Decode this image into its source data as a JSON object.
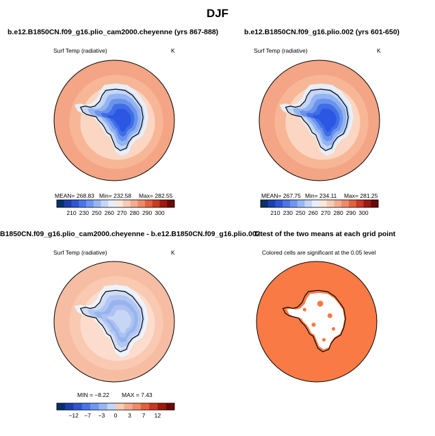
{
  "figure": {
    "title": "DJF"
  },
  "chart_data": [
    {
      "type": "polar-contour-map",
      "title": "b.e12.B1850CN.f09_g16.plio_cam2000.cheyenne (yrs 867-888)",
      "variable": "Surf Temp (radiative)",
      "units": "K",
      "stats": {
        "mean": "MEAN= 268.83",
        "min": "Min= 232.58",
        "max": "Max= 282.55"
      },
      "colorbar": {
        "ticks": [
          "210",
          "230",
          "250",
          "260",
          "270",
          "280",
          "290",
          "300"
        ],
        "colors": [
          "#08306b",
          "#1c3fb0",
          "#2f55d4",
          "#4a75e8",
          "#6f96f0",
          "#98b6f5",
          "#c4d6f8",
          "#e8eef8",
          "#fbe6dc",
          "#f8ccb6",
          "#f4ac8f",
          "#ee8a68",
          "#e2613f",
          "#c83a21",
          "#9e1a0f",
          "#6b0a04"
        ]
      }
    },
    {
      "type": "polar-contour-map",
      "title": "b.e12.B1850CN.f09_g16.plio.002 (yrs 601-650)",
      "variable": "Surf Temp (radiative)",
      "units": "K",
      "stats": {
        "mean": "MEAN= 267.75",
        "min": "Min= 234.11",
        "max": "Max= 281.25"
      },
      "colorbar": {
        "ticks": [
          "210",
          "230",
          "250",
          "260",
          "270",
          "280",
          "290",
          "300"
        ],
        "colors": [
          "#08306b",
          "#1c3fb0",
          "#2f55d4",
          "#4a75e8",
          "#6f96f0",
          "#98b6f5",
          "#c4d6f8",
          "#e8eef8",
          "#fbe6dc",
          "#f8ccb6",
          "#f4ac8f",
          "#ee8a68",
          "#e2613f",
          "#c83a21",
          "#9e1a0f",
          "#6b0a04"
        ]
      }
    },
    {
      "type": "polar-contour-map",
      "title": "B1850CN.f09_g16.plio_cam2000.cheyenne - b.e12.B1850CN.f09_g16.plio.002",
      "variable": "Surf Temp (radiative)",
      "units": "K",
      "stats": {
        "min": "MIN =  −8.22",
        "max": "MAX =    7.43"
      },
      "colorbar": {
        "ticks": [
          "−12",
          "−7",
          "−3",
          "0",
          "3",
          "7",
          "12"
        ],
        "colors": [
          "#08306b",
          "#1c3fb0",
          "#2f55d4",
          "#4a75e8",
          "#6f96f0",
          "#98b6f5",
          "#c4d6f8",
          "#f8ccb6",
          "#f4ac8f",
          "#ee8a68",
          "#e2613f",
          "#c83a21",
          "#9e1a0f",
          "#6b0a04"
        ]
      }
    },
    {
      "type": "significance-map",
      "title": "T-test of the two means at each grid point",
      "subtitle": "Colored cells are significant at the 0.05 level",
      "significant_color": "#fa7a45"
    }
  ]
}
